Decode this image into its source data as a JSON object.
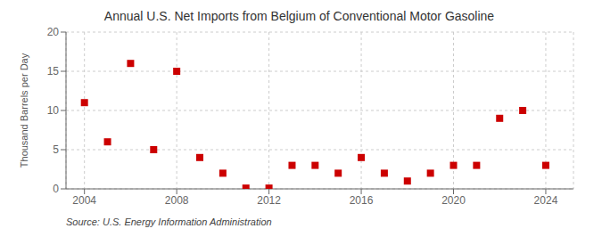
{
  "chart_data": {
    "type": "scatter",
    "title": "Annual U.S. Net Imports from Belgium of Conventional Motor Gasoline",
    "ylabel": "Thousand Barrels per Day",
    "annotations": [
      "Source: U.S. Energy Information Administration"
    ],
    "x": [
      2004,
      2005,
      2006,
      2007,
      2008,
      2009,
      2010,
      2011,
      2012,
      2013,
      2014,
      2015,
      2016,
      2017,
      2018,
      2019,
      2020,
      2021,
      2022,
      2023,
      2024
    ],
    "values": [
      11,
      6,
      16,
      5,
      15,
      4,
      2,
      0.1,
      0.1,
      3,
      3,
      2,
      4,
      2,
      1,
      2,
      3,
      3,
      9,
      10,
      3
    ],
    "color": "#cc0000",
    "marker": "square",
    "xlim": [
      2003.2,
      2025.2
    ],
    "xticks": [
      2004,
      2008,
      2012,
      2016,
      2020,
      2024
    ],
    "ylim": [
      0,
      20
    ],
    "yticks": [
      0,
      5,
      10,
      15,
      20
    ],
    "grid": true
  }
}
